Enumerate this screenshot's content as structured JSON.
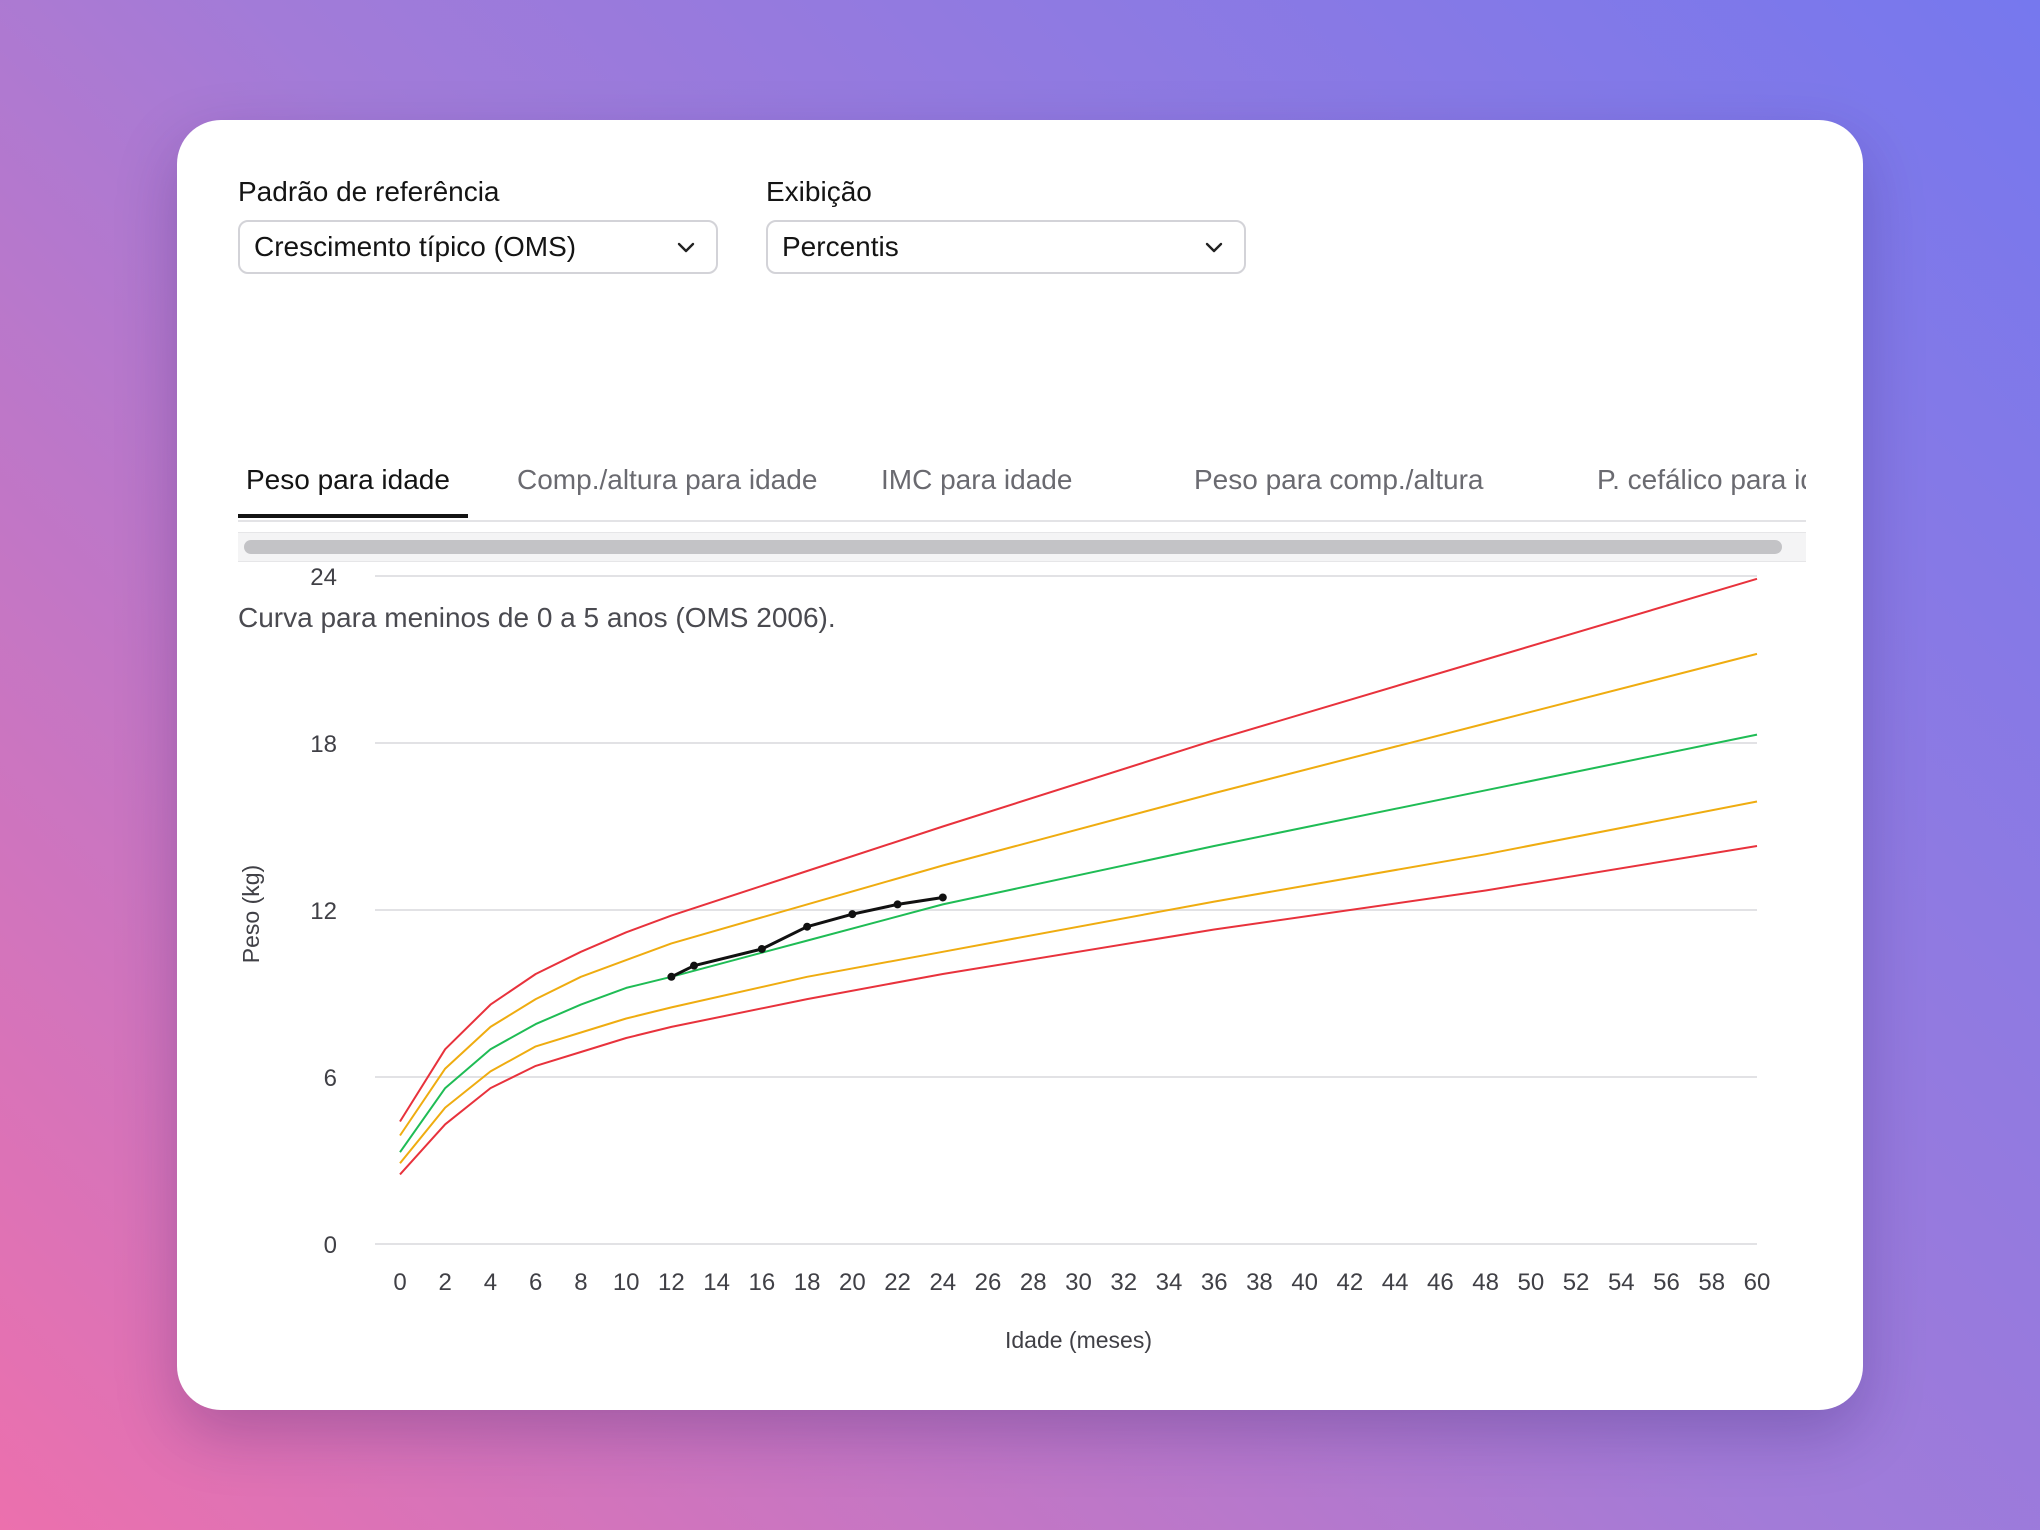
{
  "filters": {
    "reference": {
      "label": "Padrão de referência",
      "value": "Crescimento típico (OMS)",
      "icon": "chevron-down-icon"
    },
    "display": {
      "label": "Exibição",
      "value": "Percentis",
      "icon": "chevron-down-icon"
    }
  },
  "tabs": [
    {
      "label": "Peso para idade",
      "active": true
    },
    {
      "label": "Comp./altura para idade",
      "active": false
    },
    {
      "label": "IMC para idade",
      "active": false
    },
    {
      "label": "Peso para comp./altura",
      "active": false
    },
    {
      "label": "P. cefálico para idade",
      "active": false
    }
  ],
  "caption": "Curva para meninos de 0 a 5 anos (OMS 2006).",
  "chart_data": {
    "type": "line",
    "title": "",
    "xlabel": "Idade (meses)",
    "ylabel": "Peso (kg)",
    "xlim": [
      0,
      60
    ],
    "ylim": [
      0,
      24
    ],
    "x_ticks": [
      0,
      2,
      4,
      6,
      8,
      10,
      12,
      14,
      16,
      18,
      20,
      22,
      24,
      26,
      28,
      30,
      32,
      34,
      36,
      38,
      40,
      42,
      44,
      46,
      48,
      50,
      52,
      54,
      56,
      58,
      60
    ],
    "y_ticks": [
      0,
      6,
      12,
      18,
      24
    ],
    "grid": "horizontal",
    "legend": "none",
    "x": [
      0,
      2,
      4,
      6,
      8,
      10,
      12,
      18,
      24,
      36,
      48,
      60
    ],
    "series": [
      {
        "color": "#e8323c",
        "values": [
          2.5,
          4.3,
          5.6,
          6.4,
          6.9,
          7.4,
          7.8,
          8.8,
          9.7,
          11.3,
          12.7,
          14.3
        ]
      },
      {
        "color": "#efac10",
        "values": [
          2.9,
          4.9,
          6.2,
          7.1,
          7.6,
          8.1,
          8.5,
          9.6,
          10.5,
          12.3,
          14.0,
          15.9
        ]
      },
      {
        "color": "#1fbc55",
        "values": [
          3.3,
          5.6,
          7.0,
          7.9,
          8.6,
          9.2,
          9.6,
          10.9,
          12.2,
          14.3,
          16.3,
          18.3
        ]
      },
      {
        "color": "#efac10",
        "values": [
          3.9,
          6.3,
          7.8,
          8.8,
          9.6,
          10.2,
          10.8,
          12.2,
          13.6,
          16.2,
          18.7,
          21.2
        ]
      },
      {
        "color": "#e8323c",
        "values": [
          4.4,
          7.0,
          8.6,
          9.7,
          10.5,
          11.2,
          11.8,
          13.4,
          15.0,
          18.1,
          21.0,
          23.9
        ]
      }
    ],
    "patient": {
      "color": "#111111",
      "points": [
        [
          12,
          9.6
        ],
        [
          13,
          10.0
        ],
        [
          16,
          10.6
        ],
        [
          18,
          11.4
        ],
        [
          20,
          11.85
        ],
        [
          22,
          12.2
        ],
        [
          24,
          12.45
        ]
      ]
    }
  }
}
